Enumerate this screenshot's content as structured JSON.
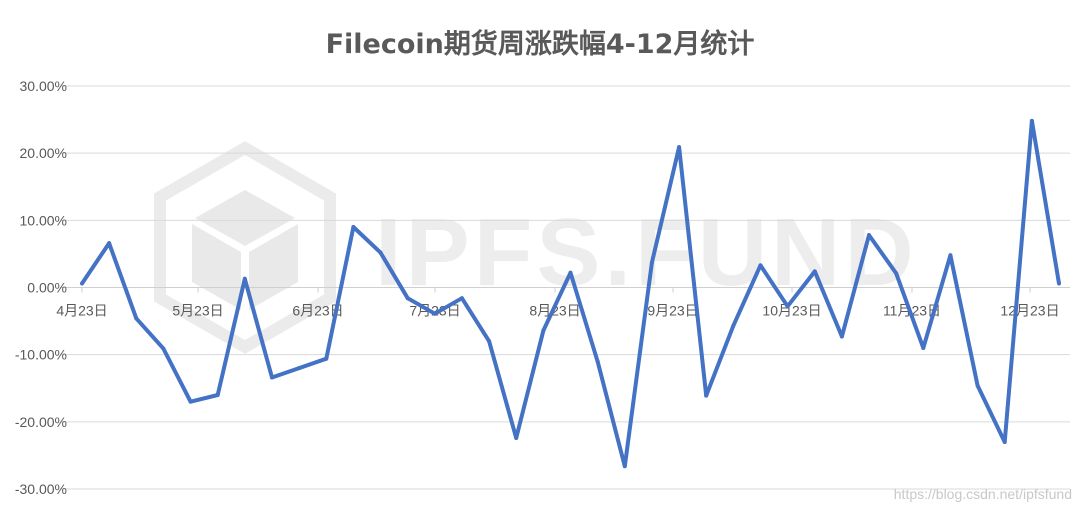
{
  "chart_data": {
    "type": "line",
    "title": "Filecoin期货周涨跌幅4-12月统计",
    "xlabel": "",
    "ylabel": "",
    "ylim": [
      -0.3,
      0.3
    ],
    "yticks": [
      0.3,
      0.2,
      0.1,
      0.0,
      -0.1,
      -0.2,
      -0.3
    ],
    "ytick_labels": [
      "30.00%",
      "20.00%",
      "10.00%",
      "0.00%",
      "-10.00%",
      "-20.00%",
      "-30.00%"
    ],
    "xtick_labels": [
      "4月23日",
      "5月23日",
      "6月23日",
      "7月23日",
      "8月23日",
      "9月23日",
      "10月23日",
      "11月23日",
      "12月23日"
    ],
    "grid": true,
    "legend": "none",
    "line_color": "#4472C4",
    "values": [
      0.006,
      0.066,
      -0.046,
      -0.091,
      -0.17,
      -0.16,
      0.013,
      -0.134,
      -0.12,
      -0.106,
      0.09,
      0.052,
      -0.016,
      -0.039,
      -0.016,
      -0.08,
      -0.224,
      -0.064,
      0.022,
      -0.11,
      -0.266,
      0.037,
      0.209,
      -0.161,
      -0.057,
      0.033,
      -0.028,
      0.024,
      -0.073,
      0.078,
      0.021,
      -0.09,
      0.048,
      -0.146,
      -0.23,
      0.248,
      0.006
    ]
  },
  "watermark": {
    "logo_text": "IPFS.FUND",
    "url": "https://blog.csdn.net/ipfsfund"
  }
}
